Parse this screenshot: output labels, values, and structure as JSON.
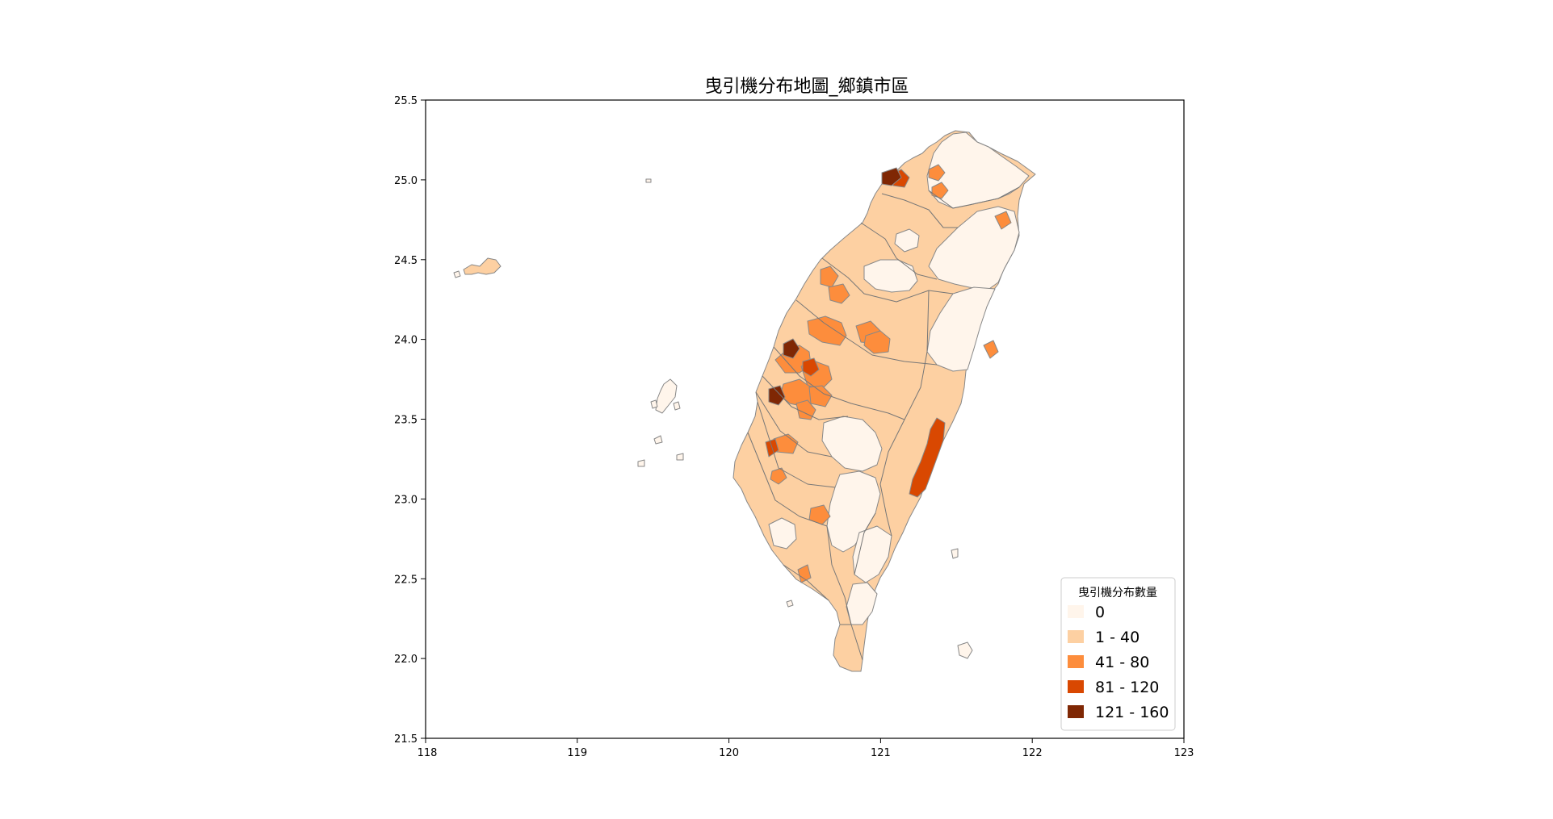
{
  "title": "曳引機分布地圖_鄉鎮市區",
  "axes": {
    "x_ticks": [
      "118",
      "119",
      "120",
      "121",
      "122",
      "123"
    ],
    "y_ticks": [
      "25.5",
      "25.0",
      "24.5",
      "24.0",
      "23.5",
      "23.0",
      "22.5",
      "22.0",
      "21.5"
    ]
  },
  "legend": {
    "title": "曳引機分布數量",
    "items": [
      {
        "label": "0",
        "color": "#fff5eb"
      },
      {
        "label": "1 - 40",
        "color": "#fdd0a2"
      },
      {
        "label": "41 - 80",
        "color": "#fd8d3c"
      },
      {
        "label": "81 - 120",
        "color": "#d94801"
      },
      {
        "label": "121 - 160",
        "color": "#7f2704"
      }
    ]
  },
  "colors": {
    "class_0": "#fff5eb",
    "class_1": "#fdd0a2",
    "class_2": "#fd8d3c",
    "class_3": "#d94801",
    "class_4": "#7f2704",
    "boundary": "#888888"
  }
}
